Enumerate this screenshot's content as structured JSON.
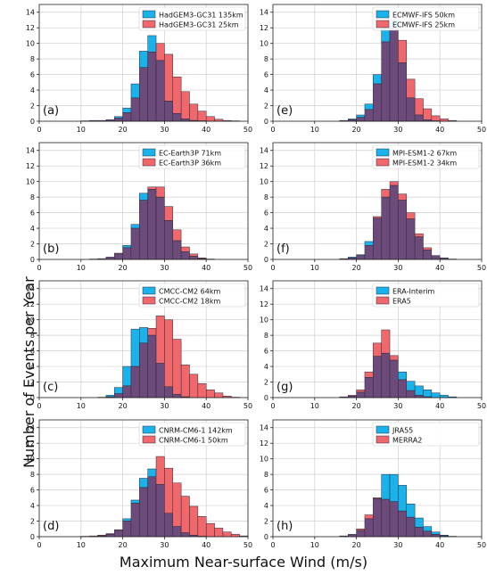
{
  "figure": {
    "ylabel": "Number of Events per Year",
    "xlabel": "Maximum Near-surface Wind (m/s)"
  },
  "colors": {
    "series_a": "#1ab2ea",
    "series_b": "#f0686c",
    "overlap": "#6c4a7a",
    "edge": "#2a2a3a"
  },
  "chart_data": [
    {
      "type": "bar",
      "panel": "(a)",
      "x": [
        8,
        10,
        12,
        14,
        16,
        18,
        20,
        22,
        24,
        26,
        28,
        30,
        32,
        34,
        36,
        38,
        40,
        42,
        44,
        46,
        48
      ],
      "series": [
        {
          "name": "HadGEM3-GC31 135km",
          "values": [
            0,
            0.05,
            0.1,
            0.1,
            0.2,
            0.6,
            1.7,
            4.8,
            9.0,
            11.0,
            7.8,
            2.6,
            1.0,
            0.3,
            0.1,
            0.05,
            0,
            0,
            0,
            0,
            0
          ]
        },
        {
          "name": "HadGEM3-GC31 25km",
          "values": [
            0,
            0.05,
            0.1,
            0.1,
            0.2,
            0.4,
            1.1,
            3.0,
            6.9,
            8.9,
            10.0,
            8.6,
            5.7,
            3.8,
            2.2,
            1.3,
            0.6,
            0.25,
            0.1,
            0.05,
            0
          ]
        }
      ],
      "xlim": [
        0,
        50
      ],
      "ylim": [
        0,
        15
      ],
      "legend": "top-right",
      "grid": true
    },
    {
      "type": "bar",
      "panel": "(e)",
      "x": [
        8,
        10,
        12,
        14,
        16,
        18,
        20,
        22,
        24,
        26,
        28,
        30,
        32,
        34,
        36,
        38,
        40,
        42,
        44,
        46,
        48
      ],
      "series": [
        {
          "name": "ECMWF-IFS 50km",
          "values": [
            0,
            0,
            0,
            0,
            0.1,
            0.3,
            0.8,
            2.2,
            6.0,
            12.0,
            13.0,
            7.5,
            3.0,
            0.8,
            0.2,
            0.05,
            0,
            0,
            0,
            0,
            0
          ]
        },
        {
          "name": "ECMWF-IFS 25km",
          "values": [
            0,
            0,
            0,
            0,
            0.1,
            0.2,
            0.5,
            1.5,
            4.8,
            10.2,
            12.0,
            10.4,
            5.4,
            2.9,
            1.6,
            0.7,
            0.3,
            0.1,
            0,
            0,
            0
          ]
        }
      ],
      "xlim": [
        0,
        50
      ],
      "ylim": [
        0,
        15
      ],
      "legend": "top-right",
      "grid": true
    },
    {
      "type": "bar",
      "panel": "(b)",
      "x": [
        8,
        10,
        12,
        14,
        16,
        18,
        20,
        22,
        24,
        26,
        28,
        30,
        32,
        34,
        36,
        38,
        40,
        42,
        44,
        46,
        48
      ],
      "series": [
        {
          "name": "EC-Earth3P 71km",
          "values": [
            0,
            0,
            0.05,
            0.1,
            0.3,
            0.7,
            1.8,
            4.5,
            8.5,
            9.0,
            8.0,
            5.0,
            2.4,
            1.0,
            0.4,
            0.1,
            0,
            0,
            0,
            0,
            0
          ]
        },
        {
          "name": "EC-Earth3P 36km",
          "values": [
            0,
            0,
            0.05,
            0.1,
            0.3,
            0.8,
            1.5,
            4.0,
            7.6,
            9.3,
            9.3,
            6.8,
            3.8,
            1.6,
            0.7,
            0.2,
            0.05,
            0,
            0,
            0,
            0
          ]
        }
      ],
      "xlim": [
        0,
        50
      ],
      "ylim": [
        0,
        15
      ],
      "legend": "top-right",
      "grid": true
    },
    {
      "type": "bar",
      "panel": "(f)",
      "x": [
        8,
        10,
        12,
        14,
        16,
        18,
        20,
        22,
        24,
        26,
        28,
        30,
        32,
        34,
        36,
        38,
        40,
        42,
        44,
        46,
        48
      ],
      "series": [
        {
          "name": "MPI-ESM1-2 67km",
          "values": [
            0,
            0,
            0,
            0,
            0.1,
            0.3,
            0.6,
            2.3,
            5.3,
            8.0,
            9.5,
            7.6,
            5.2,
            2.9,
            1.2,
            0.5,
            0.2,
            0.05,
            0,
            0,
            0
          ]
        },
        {
          "name": "MPI-ESM1-2 34km",
          "values": [
            0,
            0,
            0,
            0,
            0.1,
            0.2,
            0.5,
            1.8,
            5.5,
            9.0,
            10.0,
            8.4,
            6.0,
            3.3,
            1.5,
            0.5,
            0.2,
            0.05,
            0,
            0,
            0
          ]
        }
      ],
      "xlim": [
        0,
        50
      ],
      "ylim": [
        0,
        15
      ],
      "legend": "top-right",
      "grid": true
    },
    {
      "type": "bar",
      "panel": "(c)",
      "x": [
        8,
        10,
        12,
        14,
        16,
        18,
        20,
        22,
        24,
        26,
        28,
        30,
        32,
        34,
        36,
        38,
        40,
        42,
        44,
        46,
        48
      ],
      "series": [
        {
          "name": "CMCC-CM2 64km",
          "values": [
            0,
            0,
            0,
            0.05,
            0.3,
            1.3,
            4.0,
            8.8,
            9.0,
            8.0,
            4.4,
            1.4,
            0.4,
            0.1,
            0,
            0,
            0,
            0,
            0,
            0,
            0
          ]
        },
        {
          "name": "CMCC-CM2 18km",
          "values": [
            0,
            0,
            0,
            0.05,
            0.1,
            0.5,
            1.5,
            4.0,
            7.0,
            8.9,
            10.5,
            10.0,
            7.5,
            4.2,
            3.0,
            1.8,
            1.0,
            0.6,
            0.2,
            0.05,
            0
          ]
        }
      ],
      "xlim": [
        0,
        50
      ],
      "ylim": [
        0,
        15
      ],
      "legend": "top-right",
      "grid": true
    },
    {
      "type": "bar",
      "panel": "(g)",
      "x": [
        8,
        10,
        12,
        14,
        16,
        18,
        20,
        22,
        24,
        26,
        28,
        30,
        32,
        34,
        36,
        38,
        40,
        42,
        44,
        46,
        48
      ],
      "series": [
        {
          "name": "ERA-Interim",
          "values": [
            0,
            0,
            0,
            0,
            0.1,
            0.2,
            0.7,
            2.6,
            5.3,
            5.7,
            4.8,
            3.3,
            2.1,
            1.5,
            1.0,
            0.6,
            0.3,
            0.1,
            0,
            0,
            0
          ]
        },
        {
          "name": "ERA5",
          "values": [
            0,
            0,
            0,
            0,
            0.1,
            0.3,
            1.0,
            3.3,
            7.0,
            8.7,
            5.4,
            2.3,
            0.9,
            0.3,
            0.1,
            0,
            0,
            0,
            0,
            0,
            0
          ]
        }
      ],
      "xlim": [
        0,
        50
      ],
      "ylim": [
        0,
        15
      ],
      "legend": "top-right",
      "grid": true
    },
    {
      "type": "bar",
      "panel": "(d)",
      "x": [
        8,
        10,
        12,
        14,
        16,
        18,
        20,
        22,
        24,
        26,
        28,
        30,
        32,
        34,
        36,
        38,
        40,
        42,
        44,
        46,
        48
      ],
      "series": [
        {
          "name": "CNRM-CM6-1 142km",
          "values": [
            0,
            0,
            0,
            0.1,
            0.3,
            0.8,
            2.3,
            4.7,
            7.5,
            8.7,
            6.7,
            3.0,
            1.3,
            0.5,
            0.2,
            0.05,
            0,
            0,
            0,
            0,
            0
          ]
        },
        {
          "name": "CNRM-CM6-1 50km",
          "values": [
            0,
            0.05,
            0.1,
            0.2,
            0.4,
            0.9,
            2.0,
            4.3,
            6.3,
            7.7,
            10.3,
            8.8,
            6.9,
            5.2,
            3.9,
            2.6,
            1.7,
            1.1,
            0.6,
            0.3,
            0.1
          ]
        }
      ],
      "xlim": [
        0,
        50
      ],
      "ylim": [
        0,
        15
      ],
      "legend": "top-right",
      "grid": true
    },
    {
      "type": "bar",
      "panel": "(h)",
      "x": [
        8,
        10,
        12,
        14,
        16,
        18,
        20,
        22,
        24,
        26,
        28,
        30,
        32,
        34,
        36,
        38,
        40,
        42,
        44,
        46,
        48
      ],
      "series": [
        {
          "name": "JRA55",
          "values": [
            0,
            0,
            0,
            0,
            0.1,
            0.3,
            0.8,
            2.3,
            4.9,
            8.0,
            8.0,
            6.6,
            4.2,
            2.4,
            1.3,
            0.6,
            0.2,
            0.05,
            0,
            0,
            0
          ]
        },
        {
          "name": "MERRA2",
          "values": [
            0,
            0,
            0,
            0,
            0.1,
            0.3,
            1.0,
            2.8,
            5.0,
            4.8,
            4.5,
            3.3,
            2.5,
            1.2,
            0.7,
            0.3,
            0.1,
            0,
            0,
            0,
            0
          ]
        }
      ],
      "xlim": [
        0,
        50
      ],
      "ylim": [
        0,
        15
      ],
      "legend": "top-right",
      "grid": true
    }
  ]
}
